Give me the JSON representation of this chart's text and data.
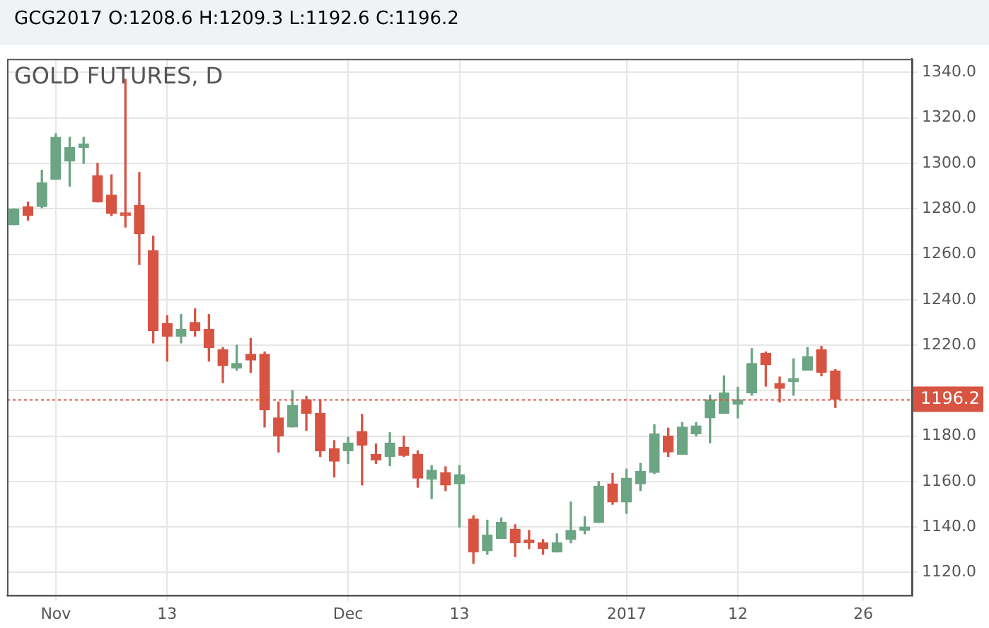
{
  "chart_data": {
    "type": "candlestick",
    "title": "GCG2017 O:1208.6 H:1209.3 L:1192.6 C:1196.2",
    "subtitle": "GOLD FUTURES, D",
    "categories": [
      null,
      null,
      null,
      "Nov",
      null,
      null,
      null,
      null,
      null,
      null,
      null,
      "13",
      null,
      null,
      null,
      null,
      null,
      null,
      null,
      null,
      null,
      null,
      null,
      null,
      "Dec",
      null,
      null,
      null,
      null,
      null,
      null,
      null,
      "13",
      null,
      null,
      null,
      null,
      null,
      null,
      null,
      null,
      null,
      null,
      null,
      "2017",
      null,
      null,
      null,
      null,
      null,
      null,
      null,
      "12",
      null,
      null,
      null,
      null,
      null,
      null,
      null,
      null,
      "26",
      null,
      null,
      null
    ],
    "ohlc": [
      [
        1273,
        1280,
        1273,
        1280
      ],
      [
        1281,
        1283,
        1275,
        1277
      ],
      [
        1281,
        1297,
        1280.5,
        1291.5
      ],
      [
        1293,
        1313,
        1293,
        1311.5
      ],
      [
        1301,
        1311.5,
        1290,
        1307
      ],
      [
        1307,
        1311.5,
        1300,
        1308.5
      ],
      [
        1294.5,
        1300,
        1283,
        1283
      ],
      [
        1286,
        1295,
        1277,
        1278
      ],
      [
        1278,
        1337,
        1272,
        1277
      ],
      [
        1281.5,
        1296,
        1255.5,
        1269
      ],
      [
        1261.5,
        1268,
        1221,
        1226.5
      ],
      [
        1229.5,
        1233,
        1213,
        1224
      ],
      [
        1224,
        1233.5,
        1221,
        1227
      ],
      [
        1230,
        1236,
        1224,
        1226.5
      ],
      [
        1227,
        1233.5,
        1213,
        1219
      ],
      [
        1218,
        1219,
        1203.5,
        1211
      ],
      [
        1210,
        1220,
        1209,
        1212
      ],
      [
        1216,
        1223,
        1208,
        1213.5
      ],
      [
        1216,
        1217,
        1184,
        1191.5
      ],
      [
        1188,
        1195,
        1173,
        1180
      ],
      [
        1184,
        1200,
        1184,
        1193.5
      ],
      [
        1196,
        1197.5,
        1182.5,
        1190
      ],
      [
        1190,
        1196,
        1171,
        1173.5
      ],
      [
        1174.5,
        1178,
        1162,
        1169
      ],
      [
        1173.5,
        1179.5,
        1168,
        1177
      ],
      [
        1182,
        1189.5,
        1158.5,
        1176
      ],
      [
        1172,
        1176.5,
        1168,
        1169.5
      ],
      [
        1171,
        1181.5,
        1167,
        1177
      ],
      [
        1175,
        1180,
        1171,
        1171.5
      ],
      [
        1172,
        1173.5,
        1157.5,
        1161.5
      ],
      [
        1161,
        1167,
        1152.5,
        1165
      ],
      [
        1164,
        1166.5,
        1156,
        1158.5
      ],
      [
        1159,
        1167,
        1140,
        1163
      ],
      [
        1143.5,
        1145,
        1124,
        1129
      ],
      [
        1129.5,
        1143,
        1128,
        1136.5
      ],
      [
        1135,
        1144,
        1135,
        1142
      ],
      [
        1139,
        1141,
        1127,
        1133
      ],
      [
        1133.5,
        1138.5,
        1130.5,
        1133
      ],
      [
        1133,
        1134.5,
        1128,
        1130.5
      ],
      [
        1129,
        1137,
        1129,
        1133
      ],
      [
        1134.5,
        1151,
        1133,
        1138.5
      ],
      [
        1138.5,
        1144.5,
        1137,
        1140
      ],
      [
        1142,
        1160,
        1142,
        1158
      ],
      [
        1159,
        1163.5,
        1150,
        1151
      ],
      [
        1151,
        1165.5,
        1146,
        1161.5
      ],
      [
        1159,
        1168,
        1156,
        1164.5
      ],
      [
        1164,
        1185,
        1163.5,
        1181
      ],
      [
        1180,
        1183.5,
        1171,
        1173
      ],
      [
        1172,
        1186,
        1172,
        1184
      ],
      [
        1181,
        1186,
        1180,
        1184.5
      ],
      [
        1188,
        1198,
        1177,
        1196
      ],
      [
        1190,
        1206.5,
        1190,
        1199
      ],
      [
        1194,
        1201.5,
        1188,
        1196
      ],
      [
        1199,
        1218.5,
        1198,
        1212
      ],
      [
        1216.5,
        1217,
        1202,
        1211.5
      ],
      [
        1203,
        1206,
        1195,
        1201
      ],
      [
        1204,
        1214,
        1198,
        1204
      ],
      [
        1209,
        1219,
        1209,
        1215
      ],
      [
        1218,
        1219.5,
        1206.5,
        1208
      ],
      [
        1208.6,
        1209.3,
        1192.6,
        1196.2
      ],
      null,
      null,
      null,
      null,
      null
    ],
    "colors": [
      "#6ba583",
      "#d75442",
      "#6ba583",
      "#6ba583",
      "#6ba583",
      "#6ba583",
      "#d75442",
      "#d75442",
      "#d75442",
      "#d75442",
      "#d75442",
      "#d75442",
      "#6ba583",
      "#d75442",
      "#d75442",
      "#d75442",
      "#6ba583",
      "#d75442",
      "#d75442",
      "#d75442",
      "#6ba583",
      "#d75442",
      "#d75442",
      "#d75442",
      "#6ba583",
      "#d75442",
      "#d75442",
      "#6ba583",
      "#d75442",
      "#d75442",
      "#6ba583",
      "#d75442",
      "#6ba583",
      "#d75442",
      "#6ba583",
      "#6ba583",
      "#d75442",
      "#d75442",
      "#d75442",
      "#6ba583",
      "#6ba583",
      "#6ba583",
      "#6ba583",
      "#d75442",
      "#6ba583",
      "#6ba583",
      "#6ba583",
      "#d75442",
      "#6ba583",
      "#6ba583",
      "#6ba583",
      "#6ba583",
      "#6ba583",
      "#6ba583",
      "#d75442",
      "#d75442",
      "#6ba583",
      "#6ba583",
      "#d75442",
      "#d75442",
      null,
      null,
      null,
      null,
      null
    ],
    "ylim": [
      1110,
      1346
    ],
    "yticks": [
      {
        "value": 1120,
        "label": "1120.0"
      },
      {
        "value": 1140,
        "label": "1140.0"
      },
      {
        "value": 1160,
        "label": "1160.0"
      },
      {
        "value": 1180,
        "label": "1180.0"
      },
      {
        "value": 1200,
        "label": null
      },
      {
        "value": 1220,
        "label": "1220.0"
      },
      {
        "value": 1240,
        "label": "1240.0"
      },
      {
        "value": 1260,
        "label": "1260.0"
      },
      {
        "value": 1280,
        "label": "1280.0"
      },
      {
        "value": 1300,
        "label": "1300.0"
      },
      {
        "value": 1320,
        "label": "1320.0"
      },
      {
        "value": 1340,
        "label": "1340.0"
      }
    ],
    "grid": true,
    "ref_lines": [
      {
        "axis": "y",
        "value": 1196.2,
        "label": "1196.2",
        "color": "#d75442",
        "line_style": "dotted"
      }
    ]
  }
}
